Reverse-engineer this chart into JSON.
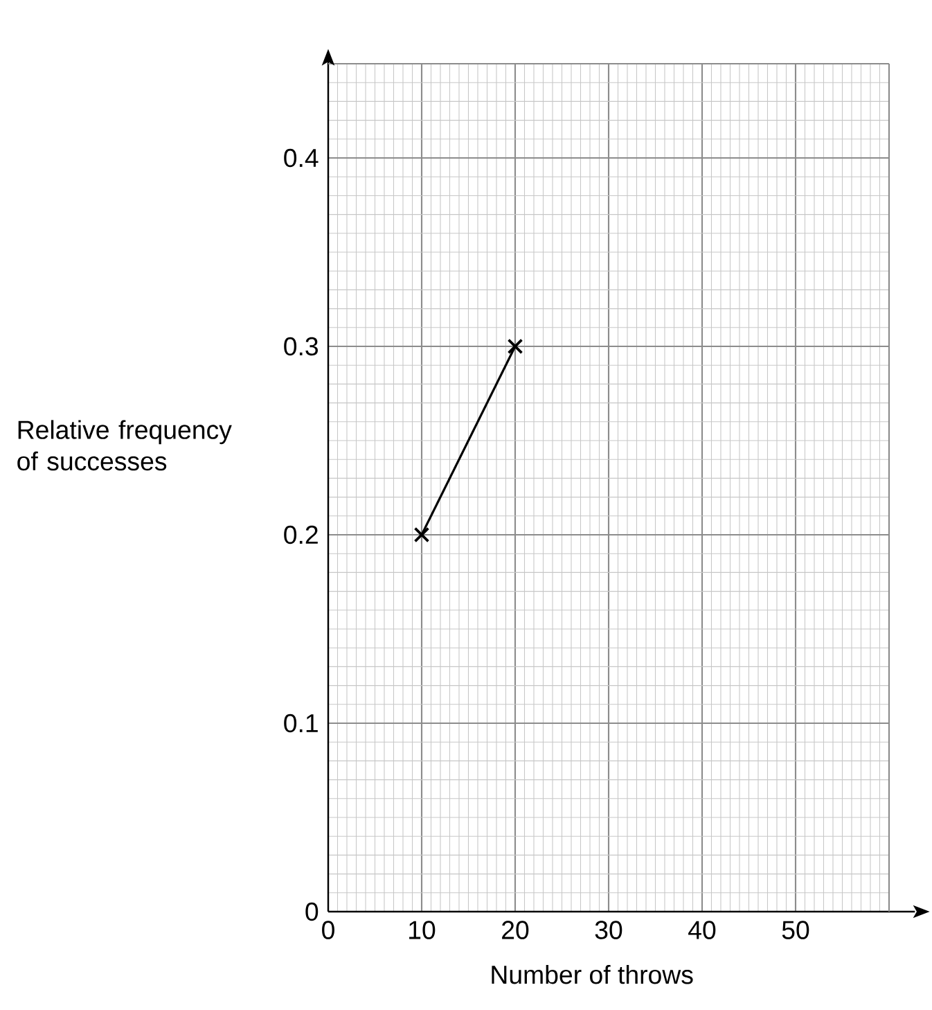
{
  "chart_data": {
    "type": "line",
    "xlabel": "Number of throws",
    "ylabel": "Relative frequency of successes",
    "x": [
      10,
      20
    ],
    "series": [
      {
        "color": "#000000",
        "values": [
          0.2,
          0.3
        ]
      }
    ],
    "xlim": [
      0,
      60
    ],
    "ylim": [
      0,
      0.45
    ],
    "xticks": [
      0,
      10,
      20,
      30,
      40,
      50
    ],
    "yticks": [
      0,
      0.1,
      0.2,
      0.3,
      0.4
    ],
    "grid": true,
    "marker": "cross",
    "line_style": "solid"
  }
}
